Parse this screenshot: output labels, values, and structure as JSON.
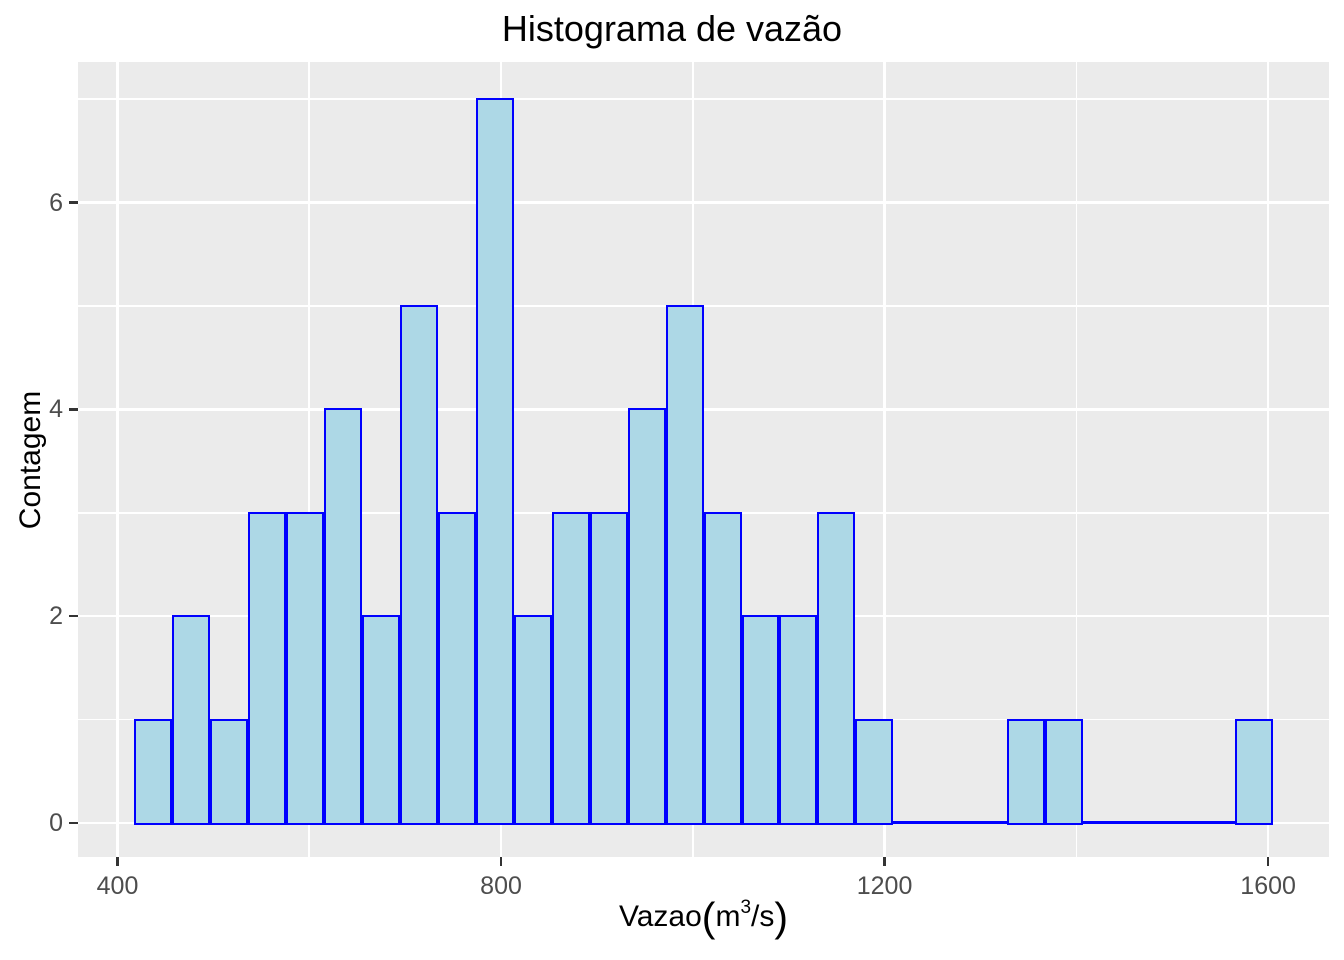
{
  "title": "Histograma de vazão",
  "axes": {
    "y_title": "Contagem",
    "x_title_parts": {
      "prefix": "Vazao",
      "open": "(",
      "base": "m",
      "sup": "3",
      "rest": "/s",
      "close": ")"
    },
    "x_tick_labels": [
      "400",
      "800",
      "1200",
      "1600"
    ],
    "y_tick_labels": [
      "0",
      "2",
      "4",
      "6"
    ]
  },
  "chart_data": {
    "type": "bar",
    "subtype": "histogram",
    "title": "Histograma de vazão",
    "xlabel": "Vazao(m^3/s)",
    "ylabel": "Contagem",
    "bin_start": 417.2,
    "bin_width": 39.6,
    "counts": [
      1,
      2,
      1,
      3,
      3,
      4,
      2,
      5,
      3,
      7,
      2,
      3,
      3,
      4,
      5,
      3,
      2,
      2,
      3,
      1,
      0,
      0,
      0,
      1,
      1,
      0,
      0,
      0,
      0,
      1
    ],
    "total_n": 62,
    "x_ticks": [
      400,
      800,
      1200,
      1600
    ],
    "y_ticks": [
      0,
      2,
      4,
      6
    ],
    "x_minor_gridlines": [
      600,
      1000,
      1400
    ],
    "y_minor_gridlines": [
      1,
      3,
      5,
      7
    ],
    "x_domain": [
      358.8,
      1663.5
    ],
    "y_domain": [
      -0.33,
      7.36
    ],
    "grid": "on",
    "legend": "none",
    "colors": {
      "bar_fill": "#ADD8E6",
      "bar_stroke": "#0000FF",
      "panel_background": "#EBEBEB",
      "gridline": "#FFFFFF",
      "tick_label": "#4D4D4D",
      "tick_mark": "#333333",
      "text": "#000000",
      "page_background": "#FFFFFF"
    }
  }
}
